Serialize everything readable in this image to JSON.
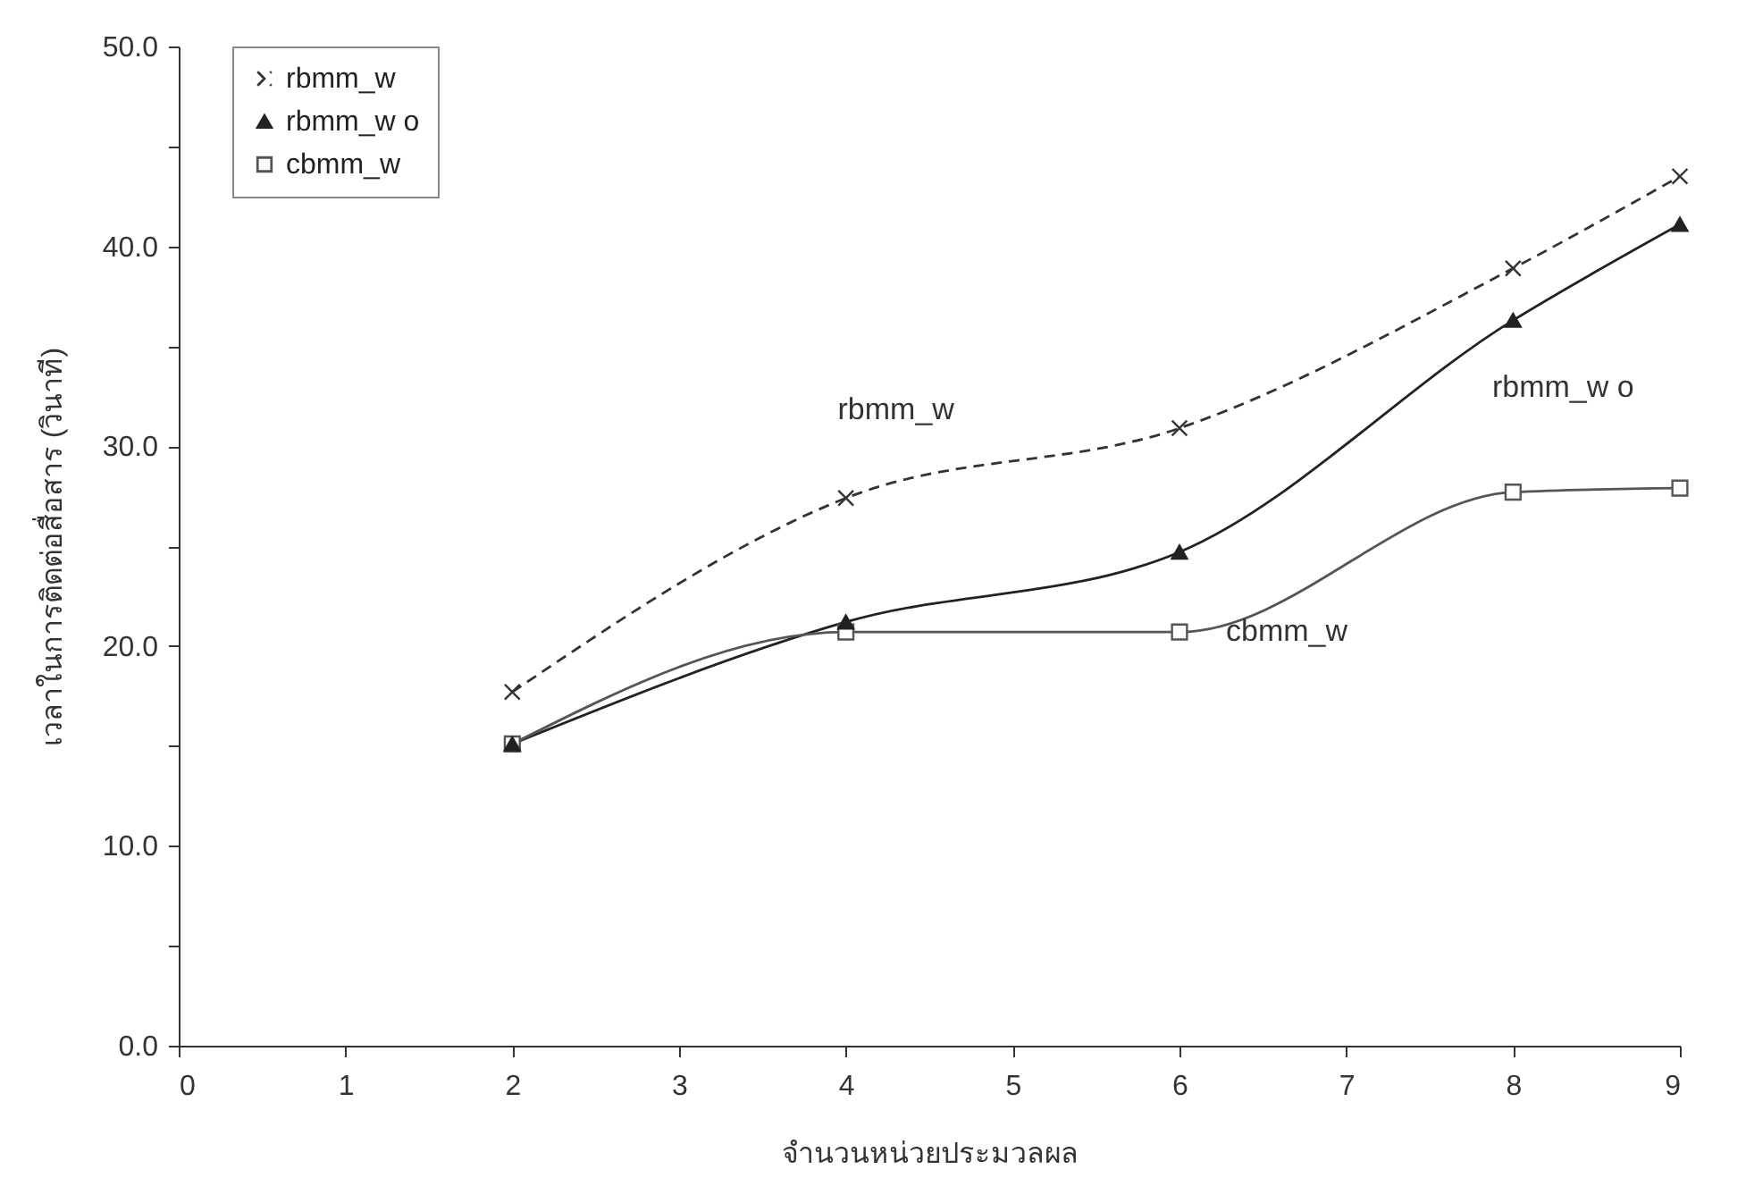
{
  "chart_data": {
    "type": "line",
    "xlabel": "จำนวนหน่วยประมวลผล",
    "ylabel": "เวลาในการติดต่อสื่อสาร (วินาที)",
    "xlim": [
      0,
      9
    ],
    "xticks": [
      0,
      1,
      2,
      3,
      4,
      5,
      6,
      7,
      8,
      9
    ],
    "ylim": [
      0,
      50
    ],
    "yticks": [
      {
        "value": 0,
        "label": "0.0"
      },
      {
        "value": 5,
        "label": null
      },
      {
        "value": 10,
        "label": "10.0"
      },
      {
        "value": 15,
        "label": null
      },
      {
        "value": 20,
        "label": "20.0"
      },
      {
        "value": 25,
        "label": null
      },
      {
        "value": 30,
        "label": "30.0"
      },
      {
        "value": 35,
        "label": null
      },
      {
        "value": 40,
        "label": "40.0"
      },
      {
        "value": 45,
        "label": null
      },
      {
        "value": 50,
        "label": "50.0"
      }
    ],
    "x": [
      2,
      4,
      6,
      8,
      9
    ],
    "series": [
      {
        "name": "rbmm_w",
        "color": "#333333",
        "values": [
          17.7,
          27.4,
          30.9,
          38.9,
          43.5
        ],
        "marker": "cross",
        "line_style": "dashed"
      },
      {
        "name": "rbmm_w o",
        "color": "#222222",
        "values": [
          15.1,
          21.2,
          24.7,
          36.3,
          41.1
        ],
        "marker": "triangle",
        "line_style": "solid"
      },
      {
        "name": "cbmm_w",
        "color": "#555555",
        "values": [
          15.1,
          20.7,
          20.7,
          27.7,
          27.9
        ],
        "marker": "square",
        "line_style": "solid"
      }
    ],
    "annotations": [
      "rbmm_w",
      "rbmm_w o",
      "cbmm_w"
    ],
    "legend": "top left",
    "grid": false
  }
}
